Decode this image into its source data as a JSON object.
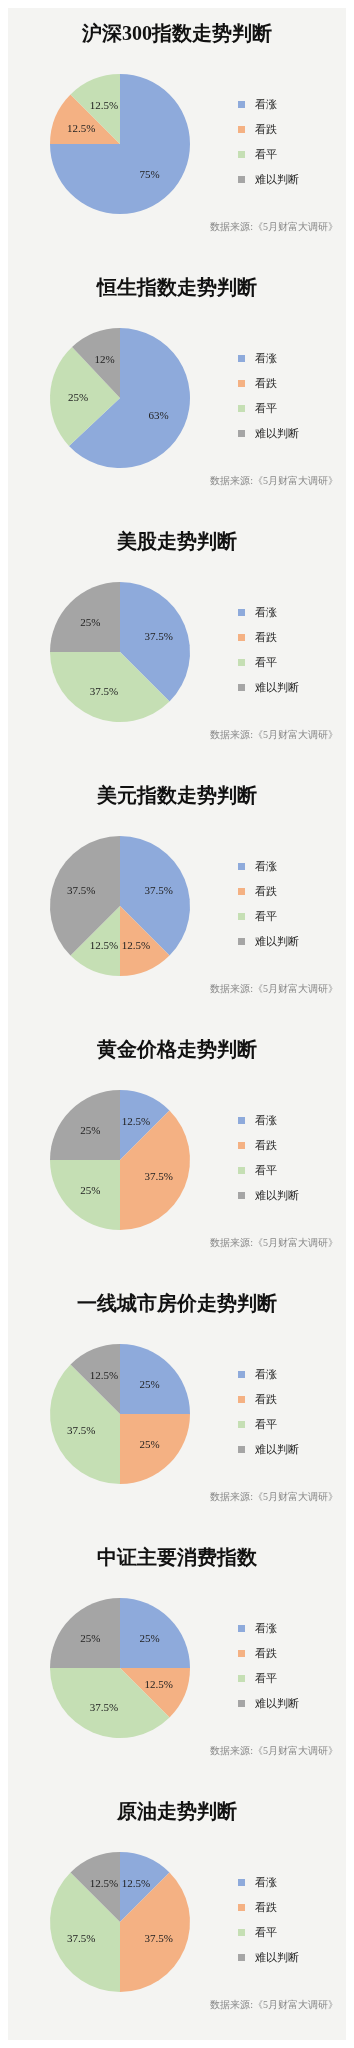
{
  "chart_data": [
    {
      "type": "pie",
      "title": "沪深300指数走势判断",
      "categories": [
        "看涨",
        "看跌",
        "看平",
        "难以判断"
      ],
      "values": [
        75,
        12.5,
        12.5,
        0
      ],
      "colors": [
        "#8eaadb",
        "#f4b183",
        "#c5dfb4",
        "#a5a5a5"
      ],
      "value_labels": [
        "75%",
        "12.5%",
        "12.5%",
        null
      ],
      "legend": "right",
      "annotations": [
        "数据来源:《5月财富大调研》"
      ]
    },
    {
      "type": "pie",
      "title": "恒生指数走势判断",
      "categories": [
        "看涨",
        "看跌",
        "看平",
        "难以判断"
      ],
      "values": [
        63,
        0,
        25,
        12
      ],
      "colors": [
        "#8eaadb",
        "#f4b183",
        "#c5dfb4",
        "#a5a5a5"
      ],
      "value_labels": [
        "63%",
        null,
        "25%",
        "12%"
      ],
      "legend": "right",
      "annotations": [
        "数据来源:《5月财富大调研》"
      ]
    },
    {
      "type": "pie",
      "title": "美股走势判断",
      "categories": [
        "看涨",
        "看跌",
        "看平",
        "难以判断"
      ],
      "values": [
        37.5,
        0,
        37.5,
        25
      ],
      "colors": [
        "#8eaadb",
        "#f4b183",
        "#c5dfb4",
        "#a5a5a5"
      ],
      "value_labels": [
        "37.5%",
        null,
        "37.5%",
        "25%"
      ],
      "legend": "right",
      "annotations": [
        "数据来源:《5月财富大调研》"
      ]
    },
    {
      "type": "pie",
      "title": "美元指数走势判断",
      "categories": [
        "看涨",
        "看跌",
        "看平",
        "难以判断"
      ],
      "values": [
        37.5,
        12.5,
        12.5,
        37.5
      ],
      "colors": [
        "#8eaadb",
        "#f4b183",
        "#c5dfb4",
        "#a5a5a5"
      ],
      "value_labels": [
        "37.5%",
        "12.5%",
        "12.5%",
        "37.5%"
      ],
      "legend": "right",
      "annotations": [
        "数据来源:《5月财富大调研》"
      ]
    },
    {
      "type": "pie",
      "title": "黄金价格走势判断",
      "categories": [
        "看涨",
        "看跌",
        "看平",
        "难以判断"
      ],
      "values": [
        12.5,
        37.5,
        25,
        25
      ],
      "colors": [
        "#8eaadb",
        "#f4b183",
        "#c5dfb4",
        "#a5a5a5"
      ],
      "value_labels": [
        "12.5%",
        "37.5%",
        "25%",
        "25%"
      ],
      "legend": "right",
      "annotations": [
        "数据来源:《5月财富大调研》"
      ]
    },
    {
      "type": "pie",
      "title": "一线城市房价走势判断",
      "categories": [
        "看涨",
        "看跌",
        "看平",
        "难以判断"
      ],
      "values": [
        25,
        25,
        37.5,
        12.5
      ],
      "colors": [
        "#8eaadb",
        "#f4b183",
        "#c5dfb4",
        "#a5a5a5"
      ],
      "value_labels": [
        "25%",
        "25%",
        "37.5%",
        "12.5%"
      ],
      "legend": "right",
      "annotations": [
        "数据来源:《5月财富大调研》"
      ]
    },
    {
      "type": "pie",
      "title": "中证主要消费指数",
      "categories": [
        "看涨",
        "看跌",
        "看平",
        "难以判断"
      ],
      "values": [
        25,
        12.5,
        37.5,
        25
      ],
      "colors": [
        "#8eaadb",
        "#f4b183",
        "#c5dfb4",
        "#a5a5a5"
      ],
      "value_labels": [
        "25%",
        "12.5%",
        "37.5%",
        "25%"
      ],
      "legend": "right",
      "annotations": [
        "数据来源:《5月财富大调研》"
      ]
    },
    {
      "type": "pie",
      "title": "原油走势判断",
      "categories": [
        "看涨",
        "看跌",
        "看平",
        "难以判断"
      ],
      "values": [
        12.5,
        37.5,
        37.5,
        12.5
      ],
      "colors": [
        "#8eaadb",
        "#f4b183",
        "#c5dfb4",
        "#a5a5a5"
      ],
      "value_labels": [
        "12.5%",
        "37.5%",
        "37.5%",
        "12.5%"
      ],
      "legend": "right",
      "annotations": [
        "数据来源:《5月财富大调研》"
      ]
    }
  ]
}
